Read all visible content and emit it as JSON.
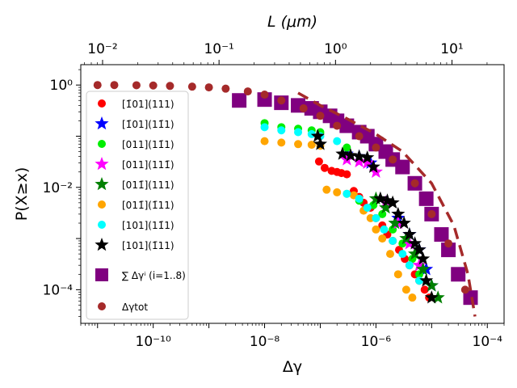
{
  "chart_data": {
    "type": "scatter",
    "title": "",
    "xlabel": "Δγ",
    "ylabel": "P(X≥x)",
    "top_xlabel": "L (μm)",
    "xscale": "log",
    "yscale": "log",
    "xlim": [
      5e-12,
      0.0002
    ],
    "ylim": [
      2.2e-05,
      2.5
    ],
    "x_ticks": [
      {
        "value": 1e-10,
        "label": "10⁻¹⁰"
      },
      {
        "value": 1e-08,
        "label": "10⁻⁸"
      },
      {
        "value": 1e-06,
        "label": "10⁻⁶"
      },
      {
        "value": 0.0001,
        "label": "10⁻⁴"
      }
    ],
    "y_ticks": [
      {
        "value": 1,
        "label": "10⁰"
      },
      {
        "value": 0.01,
        "label": "10⁻²"
      },
      {
        "value": 0.0001,
        "label": "10⁻⁴"
      }
    ],
    "top_axis": {
      "xlim": [
        0.0065,
        28
      ],
      "ticks": [
        {
          "value": 0.01,
          "label": "10⁻²"
        },
        {
          "value": 0.1,
          "label": "10⁻¹"
        },
        {
          "value": 1,
          "label": "10⁰"
        },
        {
          "value": 10,
          "label": "10¹"
        }
      ]
    },
    "legend_position": "left",
    "series": [
      {
        "name": "[1̄01](111)",
        "marker": "circle",
        "color": "#ff0000",
        "x": [
          9.5e-08,
          1.2e-07,
          1.6e-07,
          2e-07,
          2.4e-07,
          3e-07,
          4e-07,
          5e-07,
          6e-07,
          8e-07,
          1e-06,
          1.3e-06,
          1.6e-06,
          2e-06,
          2.6e-06,
          3.3e-06,
          4e-06,
          5e-06,
          6e-06,
          7.5e-06,
          9e-06
        ],
        "y": [
          0.032,
          0.024,
          0.021,
          0.02,
          0.019,
          0.018,
          0.0085,
          0.0065,
          0.005,
          0.004,
          0.0025,
          0.0018,
          0.0012,
          0.0009,
          0.0006,
          0.0004,
          0.0003,
          0.0002,
          0.00015,
          0.0001,
          7e-05
        ]
      },
      {
        "name": "[1̄01](11̄1)",
        "marker": "star",
        "color": "#0000ff",
        "x": [
          3e-07,
          5e-07,
          8e-07,
          1.5e-06,
          2.5e-06,
          4e-06,
          6e-06,
          8e-06,
          1e-05
        ],
        "y": [
          0.045,
          0.04,
          0.03,
          0.005,
          0.0025,
          0.0012,
          0.0006,
          0.00025,
          0.00012
        ]
      },
      {
        "name": "[011](11̄1)",
        "marker": "circle",
        "color": "#00ee00",
        "x": [
          1e-08,
          2e-08,
          4e-08,
          7e-08,
          1e-07,
          3e-07,
          5e-07,
          9e-07,
          1.3e-06,
          2e-06,
          3e-06,
          4.5e-06,
          6e-06
        ],
        "y": [
          0.18,
          0.15,
          0.14,
          0.13,
          0.12,
          0.06,
          0.0055,
          0.0045,
          0.003,
          0.0015,
          0.0008,
          0.0004,
          0.0002
        ]
      },
      {
        "name": "[011](111̄)",
        "marker": "star",
        "color": "#ff00ff",
        "x": [
          3e-07,
          5e-07,
          7e-07,
          1e-06,
          1.5e-06,
          2.5e-06,
          4e-06,
          6e-06
        ],
        "y": [
          0.035,
          0.032,
          0.03,
          0.02,
          0.005,
          0.002,
          0.0008,
          0.0003
        ]
      },
      {
        "name": "[011̄](111)",
        "marker": "star",
        "color": "#008000",
        "x": [
          1e-06,
          1.5e-06,
          2.2e-06,
          3.5e-06,
          5e-06,
          7e-06,
          1e-05,
          1.3e-05
        ],
        "y": [
          0.006,
          0.004,
          0.002,
          0.001,
          0.0005,
          0.00025,
          0.00012,
          7e-05
        ]
      },
      {
        "name": "[011̄](1̄11)",
        "marker": "circle",
        "color": "#ffa500",
        "x": [
          1e-08,
          2e-08,
          4e-08,
          7e-08,
          1e-07,
          1.3e-07,
          2e-07,
          3e-07,
          4e-07,
          6e-07,
          8e-07,
          1e-06,
          1.3e-06,
          1.8e-06,
          2.5e-06,
          3.5e-06,
          4.5e-06
        ],
        "y": [
          0.08,
          0.075,
          0.07,
          0.068,
          0.065,
          0.009,
          0.008,
          0.0075,
          0.007,
          0.0035,
          0.0025,
          0.0015,
          0.001,
          0.0005,
          0.0002,
          0.0001,
          7e-05
        ]
      },
      {
        "name": "[101](11̄1)",
        "marker": "circle",
        "color": "#00ffff",
        "x": [
          1e-08,
          2e-08,
          4e-08,
          7e-08,
          1e-07,
          2e-07,
          3e-07,
          5e-07,
          7e-07,
          1e-06,
          1.4e-06,
          2e-06,
          3e-06,
          4e-06,
          6e-06
        ],
        "y": [
          0.15,
          0.13,
          0.12,
          0.11,
          0.1,
          0.08,
          0.0075,
          0.006,
          0.004,
          0.0025,
          0.0015,
          0.0009,
          0.0005,
          0.0003,
          0.00015
        ]
      },
      {
        "name": "[101](1̄11)",
        "marker": "star",
        "color": "#000000",
        "x": [
          9e-08,
          1e-07,
          2.5e-07,
          3.5e-07,
          5e-07,
          7e-07,
          9e-07,
          1.2e-06,
          1.6e-06,
          2e-06,
          2.5e-06,
          3.2e-06,
          4e-06,
          5e-06,
          6e-06,
          7e-06,
          8e-06,
          1e-05
        ],
        "y": [
          0.1,
          0.07,
          0.045,
          0.042,
          0.04,
          0.038,
          0.025,
          0.006,
          0.0055,
          0.005,
          0.003,
          0.002,
          0.0012,
          0.0008,
          0.0006,
          0.0004,
          0.00015,
          7e-05
        ]
      },
      {
        "name": "∑ Δγⁱ (i=1..8)",
        "marker": "square",
        "color": "#800080",
        "x": [
          3.5e-09,
          1e-08,
          2e-08,
          4e-08,
          7e-08,
          1e-07,
          1.5e-07,
          2e-07,
          3e-07,
          5e-07,
          7e-07,
          1e-06,
          1.5e-06,
          2e-06,
          3e-06,
          5e-06,
          8e-06,
          1e-05,
          1.5e-05,
          2e-05,
          3e-05,
          5e-05
        ],
        "y": [
          0.5,
          0.52,
          0.45,
          0.4,
          0.35,
          0.3,
          0.25,
          0.2,
          0.16,
          0.12,
          0.1,
          0.07,
          0.05,
          0.035,
          0.025,
          0.012,
          0.006,
          0.003,
          0.0012,
          0.0006,
          0.0002,
          7e-05
        ]
      },
      {
        "name": "Δγtot",
        "marker": "circle",
        "color": "#a52a2a",
        "x": [
          1e-11,
          2e-11,
          5e-11,
          1e-10,
          2e-10,
          5e-10,
          1e-09,
          2e-09,
          5e-09,
          1e-08,
          2e-08,
          5e-08,
          1e-07,
          2e-07,
          5e-07,
          1e-06,
          2e-06,
          5e-06,
          1e-05,
          2e-05,
          4e-05
        ],
        "y": [
          1,
          1,
          0.99,
          0.98,
          0.96,
          0.93,
          0.9,
          0.85,
          0.75,
          0.65,
          0.5,
          0.35,
          0.25,
          0.16,
          0.1,
          0.06,
          0.035,
          0.012,
          0.003,
          0.0008,
          0.0001
        ]
      }
    ],
    "fit_line": {
      "name": "fit",
      "style": "dashed",
      "color": "#a52a2a",
      "x": [
        4e-08,
        1e-07,
        3e-07,
        1e-06,
        3e-06,
        1e-05,
        2.5e-05,
        4.5e-05,
        6e-05
      ],
      "y": [
        0.7,
        0.4,
        0.22,
        0.11,
        0.05,
        0.012,
        0.0018,
        0.0002,
        3e-05
      ]
    }
  }
}
